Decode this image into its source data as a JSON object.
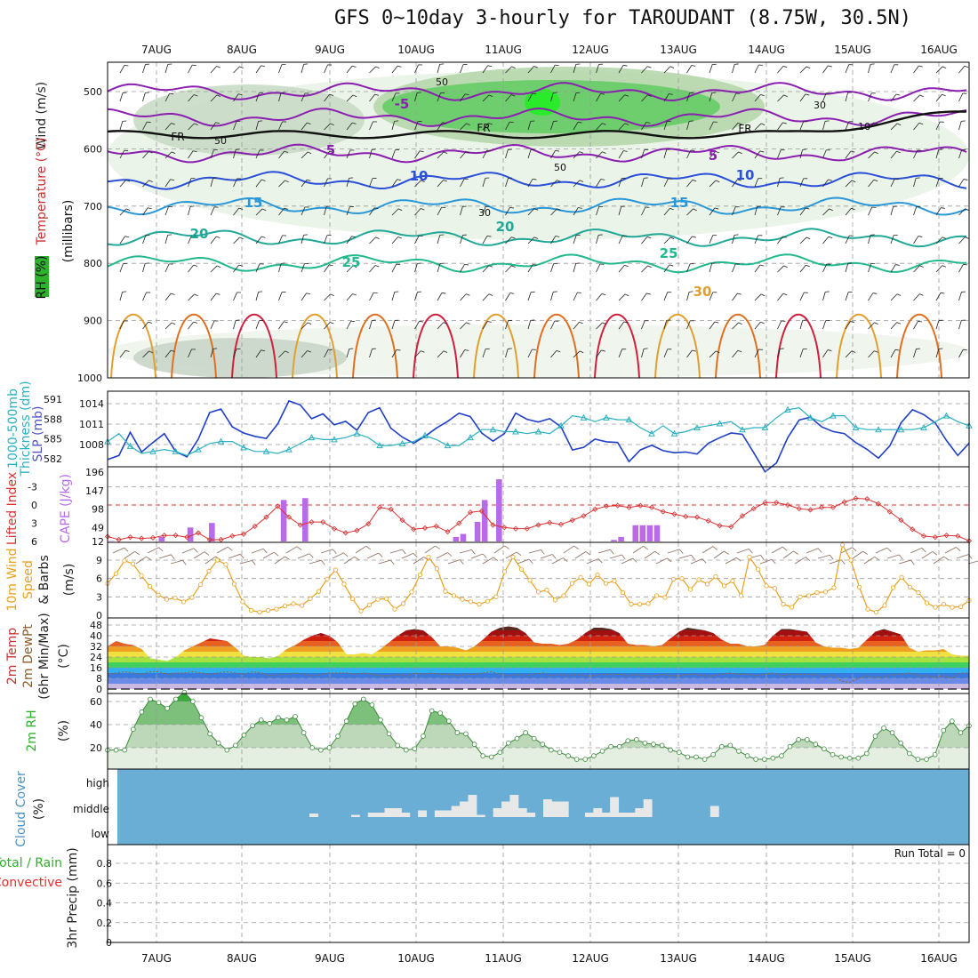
{
  "title": "GFS 0~10day 3-hourly for TAROUDANT (8.75W, 30.5N)",
  "dates": [
    "7AUG",
    "8AUG",
    "9AUG",
    "10AUG",
    "11AUG",
    "12AUG",
    "13AUG",
    "14AUG",
    "15AUG",
    "16AUG"
  ],
  "colors": {
    "rh": "#2bb32b",
    "temp_purple": "#8a1fb0",
    "slp": "#1f3fc8",
    "thick": "#2ab0c0",
    "li": "#d83030",
    "cape": "#b86ae8",
    "wind": "#e8a020",
    "cloud_bg": "#6aaed6",
    "cloud": "#e8e8e8"
  },
  "panels": {
    "upper": {
      "labels": [
        "Wind (m/s)",
        "Temperature (°C)",
        "RH (%)",
        "(millibars)"
      ]
    },
    "slp": {
      "labels": [
        "1000-500mb",
        "Thickness (dm)",
        "SLP (mb)"
      ]
    },
    "cape": {
      "labels": [
        "Lifted Index",
        "CAPE (J/kg)"
      ]
    },
    "wind10": {
      "labels": [
        "10m Wind",
        "Speed",
        "& Barbs",
        "(m/s)"
      ]
    },
    "temp2m": {
      "labels": [
        "2m Temp",
        "2m DewPt",
        "(6hr Min/Max)",
        "(°C)"
      ]
    },
    "rh2m": {
      "labels": [
        "2m RH",
        "(%)"
      ]
    },
    "cloud": {
      "labels": [
        "Cloud Cover",
        "(%)"
      ],
      "levels": [
        "high",
        "middle",
        "low"
      ]
    },
    "precip": {
      "labels": [
        "Total / Rain",
        "Convective",
        "3hr Precip (mm)"
      ],
      "run_total": "Run Total = 0"
    }
  },
  "chart_data": [
    {
      "type": "contour",
      "name": "upper-air",
      "pressure_ticks": [
        500,
        600,
        700,
        800,
        900,
        1000
      ],
      "temperature_contour_labels": [
        "-5",
        "5",
        "5",
        "10",
        "10",
        "15",
        "15",
        "20",
        "20",
        "25",
        "25",
        "30"
      ],
      "freezing_labels": [
        "FR",
        "FR",
        "FR"
      ],
      "rh_labels": [
        "50",
        "50",
        "50",
        "30",
        "30",
        "10"
      ]
    },
    {
      "type": "line",
      "name": "slp-thickness",
      "slp_ticks": [
        "1008",
        "1011",
        "1014"
      ],
      "thickness_ticks": [
        "582",
        "585",
        "588",
        "591"
      ],
      "slp_y": [
        1005.8,
        1006.4,
        1009.8,
        1006.9,
        1008.3,
        1009.6,
        1007.0,
        1006.2,
        1008.8,
        1012.7,
        1013.2,
        1010.6,
        1009.7,
        1009.2,
        1008.9,
        1011.0,
        1014.4,
        1013.8,
        1011.8,
        1012.5,
        1010.9,
        1011.4,
        1010.1,
        1012.7,
        1013.4,
        1010.4,
        1009.1,
        1008.2,
        1009.2,
        1010.4,
        1011.4,
        1012.6,
        1012.1,
        1009.7,
        1008.5,
        1009.6,
        1012.6,
        1011.7,
        1011.3,
        1011.8,
        1010.6,
        1007.2,
        1007.6,
        1008.8,
        1008.4,
        1008.3,
        1005.5,
        1007.2,
        1007.9,
        1007.1,
        1006.8,
        1006.9,
        1006.6,
        1008.2,
        1009.0,
        1009.7,
        1009.5,
        1006.8,
        1004.0,
        1005.3,
        1009.0,
        1011.6,
        1012.0,
        1010.6,
        1009.9,
        1009.6,
        1008.3,
        1007.3,
        1006.0,
        1007.8,
        1011.2,
        1013.1,
        1012.4,
        1011.2,
        1008.6,
        1006.4,
        1008.2
      ],
      "thick_y": [
        584.6,
        585.8,
        583.9,
        582.8,
        583.1,
        583.4,
        583.1,
        582.5,
        583.4,
        584.3,
        584.6,
        584.6,
        583.7,
        583.1,
        583.1,
        582.8,
        583.4,
        584.3,
        585.2,
        584.9,
        584.9,
        585.2,
        585.8,
        585.2,
        584.0,
        584.0,
        584.3,
        584.6,
        585.5,
        584.9,
        584.0,
        584.0,
        585.2,
        586.4,
        586.4,
        586.1,
        586.1,
        585.8,
        586.1,
        585.8,
        587.0,
        588.5,
        588.2,
        587.6,
        588.2,
        587.9,
        587.9,
        586.7,
        585.8,
        587.0,
        585.8,
        586.1,
        586.7,
        587.0,
        587.3,
        587.6,
        586.4,
        586.7,
        586.7,
        588.2,
        589.4,
        589.7,
        588.2,
        587.6,
        588.5,
        588.5,
        586.7,
        586.4,
        586.4,
        586.4,
        586.4,
        586.4,
        586.7,
        587.6,
        588.5,
        587.6,
        587.0
      ]
    },
    {
      "type": "bar",
      "name": "cape-lifted-index",
      "li_ticks": [
        "-3",
        "0",
        "3",
        "6"
      ],
      "cape_ticks": [
        "12",
        "49",
        "98",
        "147",
        "196"
      ],
      "li_y": [
        5.2,
        5.7,
        5.3,
        5.5,
        5.4,
        5.0,
        5.0,
        5.3,
        4.6,
        5.7,
        5.7,
        5.1,
        4.8,
        3.5,
        2.0,
        0.2,
        2.0,
        3.3,
        2.8,
        2.8,
        3.9,
        4.6,
        4.2,
        3.1,
        0.4,
        0.7,
        2.5,
        4.0,
        3.8,
        3.5,
        4.4,
        3.0,
        1.2,
        1.0,
        3.3,
        3.7,
        3.9,
        3.9,
        3.3,
        2.9,
        3.2,
        2.5,
        1.8,
        0.7,
        0.2,
        0.1,
        0.4,
        0.1,
        0.4,
        1.1,
        1.5,
        1.9,
        2.0,
        2.6,
        3.4,
        3.6,
        1.8,
        0.6,
        -0.4,
        -0.4,
        0.0,
        0.6,
        0.8,
        0.4,
        0.4,
        -0.5,
        -1.1,
        -1.0,
        -0.2,
        1.1,
        2.5,
        4.0,
        5.1,
        5.3,
        5.0,
        5.1,
        5.9
      ],
      "cape_bars": [
        [
          1,
          0,
          0
        ],
        [
          0,
          0,
          0
        ],
        [
          0,
          12,
          0
        ],
        [
          0,
          0,
          37
        ],
        [
          0,
          0,
          49
        ],
        [
          0,
          0,
          0
        ],
        [
          0,
          0,
          0
        ],
        [
          0,
          0,
          0
        ],
        [
          110,
          0,
          0
        ],
        [
          115,
          0,
          0
        ],
        [
          0,
          0,
          0
        ],
        [
          0,
          0,
          0
        ],
        [
          0,
          0,
          0
        ],
        [
          0,
          0,
          0
        ],
        [
          0,
          0,
          0
        ],
        [
          0,
          0,
          0
        ],
        [
          12,
          20,
          0
        ],
        [
          52,
          110,
          0
        ],
        [
          165,
          0,
          0
        ],
        [
          0,
          0,
          0
        ],
        [
          0,
          0,
          0
        ],
        [
          0,
          0,
          0
        ],
        [
          0,
          0,
          0
        ],
        [
          0,
          4,
          12
        ],
        [
          0,
          43,
          43
        ],
        [
          43,
          43,
          0
        ],
        [
          0,
          0,
          0
        ],
        [
          0,
          0,
          0
        ],
        [
          0,
          0,
          0
        ],
        [
          0,
          0,
          0
        ],
        [
          0,
          0,
          0
        ],
        [
          0,
          0,
          0
        ],
        [
          0,
          0,
          0
        ],
        [
          0,
          0,
          0
        ],
        [
          0,
          0,
          0
        ],
        [
          0,
          0,
          0
        ],
        [
          0,
          0,
          0
        ],
        [
          0,
          0,
          0
        ],
        [
          0,
          0,
          0
        ],
        [
          0,
          0,
          0
        ]
      ]
    },
    {
      "type": "line",
      "name": "10m-wind",
      "ticks": [
        "0",
        "3",
        "6",
        "9"
      ],
      "y": [
        5.2,
        6.8,
        8.9,
        8.4,
        6.5,
        4.7,
        3.3,
        2.6,
        2.8,
        2.2,
        2.9,
        5.0,
        7.2,
        9.0,
        8.3,
        5.1,
        2.2,
        0.8,
        0.5,
        0.8,
        1.0,
        1.5,
        1.9,
        1.6,
        2.7,
        3.9,
        5.9,
        7.4,
        5.1,
        2.7,
        0.7,
        1.7,
        2.6,
        2.7,
        1.0,
        1.9,
        3.8,
        6.6,
        9.5,
        7.6,
        3.9,
        3.2,
        2.6,
        2.2,
        1.8,
        2.3,
        3.0,
        7.1,
        9.5,
        7.5,
        5.7,
        3.8,
        4.1,
        2.5,
        3.2,
        5.2,
        6.2,
        5.1,
        6.6,
        5.2,
        5.6,
        3.7,
        1.8,
        1.8,
        1.9,
        3.2,
        2.9,
        5.9,
        6.0,
        4.2,
        5.8,
        5.1,
        6.3,
        4.8,
        5.6,
        3.2,
        9.5,
        7.5,
        4.8,
        4.4,
        1.8,
        1.3,
        3.0,
        3.2,
        3.7,
        3.8,
        4.5,
        11.5,
        9.0,
        4.6,
        1.0,
        0.5,
        1.6,
        4.5,
        6.2,
        4.6,
        3.7,
        2.0,
        1.3,
        1.8,
        1.3,
        1.4,
        2.4
      ]
    },
    {
      "type": "area",
      "name": "2m-temp",
      "ticks": [
        "0",
        "8",
        "16",
        "24",
        "32",
        "40",
        "48"
      ],
      "temp_y": [
        32,
        36,
        34,
        33,
        30,
        23,
        22,
        21,
        24,
        29,
        32,
        35,
        38,
        37,
        36,
        31,
        25,
        24,
        24,
        23,
        25,
        30,
        33,
        37,
        40,
        42,
        40,
        35,
        26,
        26,
        27,
        26,
        30,
        35,
        40,
        44,
        45,
        44,
        39,
        32,
        32,
        31,
        29,
        32,
        37,
        43,
        46,
        47,
        46,
        42,
        35,
        34,
        34,
        33,
        34,
        37,
        42,
        46,
        46,
        45,
        42,
        34,
        33,
        33,
        32,
        33,
        38,
        43,
        46,
        45,
        44,
        42,
        37,
        34,
        34,
        32,
        32,
        33,
        40,
        45,
        45,
        44,
        43,
        35,
        32,
        31,
        31,
        30,
        31,
        37,
        43,
        45,
        43,
        41,
        31,
        28,
        29,
        29,
        30,
        26,
        25,
        25
      ],
      "dew_y": [
        11,
        12,
        13,
        12,
        11,
        13,
        13,
        11,
        12,
        12,
        13,
        12,
        11,
        12,
        13,
        12,
        11,
        13,
        12,
        10,
        11,
        11,
        12,
        11,
        10,
        11,
        12,
        12,
        12,
        11,
        12,
        11,
        10,
        10,
        11,
        10,
        12,
        11,
        12,
        11,
        11,
        10,
        11,
        11,
        12,
        13,
        11,
        10,
        11,
        10,
        11,
        12,
        10,
        11,
        10,
        11,
        10,
        10,
        11,
        11,
        11,
        10,
        11,
        10,
        10,
        11,
        10,
        10,
        11,
        11,
        10,
        10,
        11,
        12,
        11,
        11,
        10,
        11,
        12,
        10,
        11,
        11,
        11,
        11,
        9,
        11,
        6,
        5,
        8,
        10,
        9,
        9,
        11,
        11,
        12,
        10,
        10,
        9,
        10,
        8,
        12,
        12
      ]
    },
    {
      "type": "area",
      "name": "2m-rh",
      "ticks": [
        "20",
        "40",
        "60"
      ],
      "y": [
        18,
        18,
        18,
        36,
        51,
        62,
        59,
        54,
        62,
        68,
        60,
        46,
        32,
        24,
        18,
        22,
        31,
        39,
        44,
        41,
        46,
        44,
        47,
        33,
        20,
        18,
        20,
        30,
        43,
        58,
        62,
        57,
        44,
        32,
        22,
        18,
        19,
        30,
        52,
        50,
        43,
        33,
        32,
        23,
        13,
        12,
        16,
        24,
        28,
        33,
        28,
        23,
        18,
        16,
        13,
        10,
        10,
        13,
        17,
        21,
        21,
        26,
        27,
        24,
        23,
        22,
        18,
        16,
        12,
        12,
        10,
        14,
        21,
        22,
        17,
        13,
        10,
        10,
        11,
        13,
        21,
        27,
        27,
        23,
        19,
        14,
        12,
        11,
        11,
        15,
        30,
        37,
        33,
        24,
        15,
        10,
        10,
        14,
        35,
        43,
        33,
        39
      ]
    },
    {
      "type": "bar",
      "name": "cloud-cover",
      "levels": [
        "high",
        "middle",
        "low"
      ],
      "middle": [
        0,
        0,
        0,
        0,
        0,
        0,
        0,
        0,
        0,
        0,
        0,
        0,
        0,
        0,
        0,
        0,
        0,
        0,
        0,
        0,
        0,
        0,
        0,
        8,
        0,
        0,
        0,
        0,
        5,
        0,
        10,
        10,
        20,
        20,
        10,
        0,
        15,
        0,
        15,
        15,
        25,
        35,
        50,
        5,
        0,
        20,
        35,
        50,
        20,
        10,
        0,
        40,
        35,
        35,
        0,
        0,
        10,
        20,
        10,
        45,
        10,
        10,
        20,
        40,
        0,
        0,
        0,
        0,
        0,
        0,
        0,
        25,
        0,
        0,
        0,
        0,
        0,
        0,
        0,
        0,
        0,
        0,
        0,
        0,
        0,
        0,
        0,
        0,
        0,
        0,
        0,
        0,
        0,
        0,
        0,
        0,
        0,
        0,
        0,
        0,
        0,
        0
      ]
    },
    {
      "type": "bar",
      "name": "3hr-precip",
      "ticks": [
        "0",
        "0.2",
        "0.4",
        "0.6",
        "0.8"
      ],
      "values": []
    }
  ]
}
